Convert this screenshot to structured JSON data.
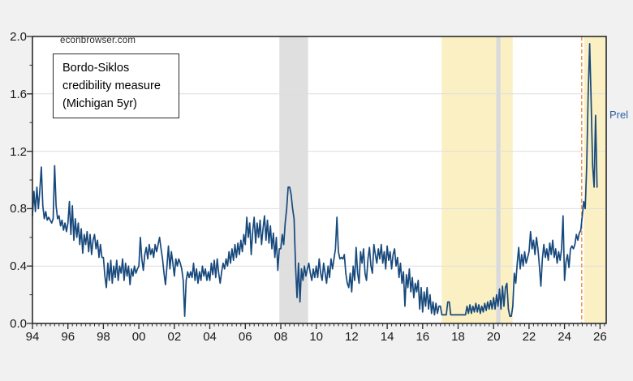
{
  "watermark": "econbrowser.com",
  "annotation_box": {
    "line1": "Bordo-Siklos",
    "line2": "credibility measure",
    "line3": "(Michigan 5yr)"
  },
  "prel_label": "Prel",
  "colors": {
    "canvas_bg": "#F1F1F1",
    "plot_bg": "#FFFFFF",
    "frame": "#2B2B2B",
    "gridline": "#DEDEDE",
    "tick": "#2B2B2B",
    "label": "#1A1A1A",
    "prel_text": "#2C5FA8"
  },
  "chart_data": {
    "type": "line",
    "title": "Bordo-Siklos credibility measure (Michigan 5yr)",
    "xlabel": "",
    "ylabel": "",
    "x_axis": {
      "min": 1994,
      "max": 2026.35,
      "tick_values": [
        1994,
        1996,
        1998,
        2000,
        2002,
        2004,
        2006,
        2008,
        2010,
        2012,
        2014,
        2016,
        2018,
        2020,
        2022,
        2024,
        2026
      ],
      "tick_labels": [
        "94",
        "96",
        "98",
        "00",
        "02",
        "04",
        "06",
        "08",
        "10",
        "12",
        "14",
        "16",
        "18",
        "20",
        "22",
        "24",
        "26"
      ],
      "minor_tick_step": 0.25
    },
    "y_axis": {
      "min": 0,
      "max": 2,
      "tick_values": [
        0,
        0.4,
        0.8,
        1.2,
        1.6,
        2.0
      ],
      "tick_labels": [
        "0.0",
        "0.4",
        "0.8",
        "1.2",
        "1.6",
        "2.0"
      ],
      "minor_tick_step": 0.2
    },
    "gridlines": [
      0.4,
      0.8,
      1.2,
      1.6
    ],
    "bands": [
      {
        "name": "recession-2008",
        "from": 2007.92,
        "to": 2009.54,
        "color": "#DFDFDF"
      },
      {
        "name": "yellow-2017-2021",
        "from": 2017.08,
        "to": 2021.08,
        "color": "#FBF0C3"
      },
      {
        "name": "recession-2020",
        "from": 2020.15,
        "to": 2020.39,
        "color": "#D9D9DE"
      },
      {
        "name": "yellow-2025",
        "from": 2025.1,
        "to": 2026.35,
        "color": "#FBF0C3"
      }
    ],
    "vline": {
      "x": 2024.97,
      "color": "#EF8A3B",
      "style": "dashed"
    },
    "series": [
      {
        "name": "Bordo-Siklos credibility measure (Michigan 5yr)",
        "color": "#17497C",
        "start_year": 1994,
        "frequency": "monthly",
        "values": [
          0.75,
          0.92,
          0.78,
          0.95,
          0.8,
          0.93,
          1.09,
          0.82,
          0.73,
          0.78,
          0.72,
          0.74,
          0.72,
          0.7,
          0.73,
          1.1,
          0.82,
          0.73,
          0.75,
          0.68,
          0.72,
          0.65,
          0.7,
          0.64,
          0.7,
          0.85,
          0.62,
          0.82,
          0.58,
          0.73,
          0.6,
          0.7,
          0.55,
          0.66,
          0.49,
          0.62,
          0.55,
          0.64,
          0.5,
          0.62,
          0.48,
          0.58,
          0.62,
          0.52,
          0.58,
          0.46,
          0.55,
          0.46,
          0.46,
          0.33,
          0.25,
          0.42,
          0.3,
          0.44,
          0.28,
          0.4,
          0.32,
          0.44,
          0.3,
          0.4,
          0.35,
          0.45,
          0.3,
          0.42,
          0.33,
          0.4,
          0.27,
          0.38,
          0.33,
          0.4,
          0.35,
          0.38,
          0.4,
          0.6,
          0.45,
          0.37,
          0.48,
          0.53,
          0.45,
          0.55,
          0.48,
          0.52,
          0.46,
          0.55,
          0.5,
          0.55,
          0.6,
          0.52,
          0.45,
          0.35,
          0.27,
          0.4,
          0.54,
          0.38,
          0.5,
          0.42,
          0.33,
          0.45,
          0.4,
          0.45,
          0.42,
          0.38,
          0.3,
          0.05,
          0.3,
          0.36,
          0.32,
          0.36,
          0.32,
          0.42,
          0.3,
          0.38,
          0.28,
          0.36,
          0.3,
          0.4,
          0.33,
          0.38,
          0.3,
          0.36,
          0.3,
          0.42,
          0.34,
          0.44,
          0.32,
          0.45,
          0.35,
          0.28,
          0.36,
          0.42,
          0.38,
          0.45,
          0.4,
          0.5,
          0.42,
          0.52,
          0.44,
          0.55,
          0.46,
          0.56,
          0.48,
          0.58,
          0.5,
          0.62,
          0.55,
          0.74,
          0.6,
          0.7,
          0.48,
          0.64,
          0.74,
          0.56,
          0.7,
          0.6,
          0.72,
          0.55,
          0.66,
          0.75,
          0.58,
          0.72,
          0.56,
          0.68,
          0.52,
          0.63,
          0.46,
          0.6,
          0.37,
          0.52,
          0.52,
          0.62,
          0.55,
          0.7,
          0.8,
          0.95,
          0.95,
          0.9,
          0.8,
          0.73,
          0.4,
          0.18,
          0.42,
          0.15,
          0.38,
          0.3,
          0.4,
          0.33,
          0.38,
          0.42,
          0.35,
          0.3,
          0.38,
          0.32,
          0.4,
          0.32,
          0.45,
          0.35,
          0.3,
          0.42,
          0.35,
          0.28,
          0.4,
          0.32,
          0.45,
          0.38,
          0.45,
          0.52,
          0.74,
          0.5,
          0.45,
          0.46,
          0.45,
          0.48,
          0.35,
          0.28,
          0.25,
          0.35,
          0.22,
          0.4,
          0.3,
          0.53,
          0.35,
          0.28,
          0.5,
          0.42,
          0.52,
          0.35,
          0.3,
          0.45,
          0.53,
          0.4,
          0.35,
          0.55,
          0.48,
          0.42,
          0.52,
          0.45,
          0.55,
          0.42,
          0.5,
          0.38,
          0.54,
          0.44,
          0.5,
          0.38,
          0.48,
          0.52,
          0.4,
          0.46,
          0.32,
          0.42,
          0.28,
          0.36,
          0.12,
          0.34,
          0.25,
          0.38,
          0.22,
          0.32,
          0.18,
          0.28,
          0.22,
          0.3,
          0.1,
          0.25,
          0.08,
          0.22,
          0.12,
          0.25,
          0.1,
          0.2,
          0.07,
          0.15,
          0.06,
          0.14,
          0.07,
          0.12,
          0.12,
          0.06,
          0.06,
          0.06,
          0.06,
          0.15,
          0.15,
          0.06,
          0.06,
          0.06,
          0.06,
          0.06,
          0.06,
          0.06,
          0.06,
          0.06,
          0.06,
          0.06,
          0.12,
          0.07,
          0.13,
          0.07,
          0.12,
          0.08,
          0.14,
          0.08,
          0.13,
          0.07,
          0.12,
          0.08,
          0.14,
          0.09,
          0.15,
          0.1,
          0.16,
          0.1,
          0.18,
          0.1,
          0.2,
          0.12,
          0.24,
          0.1,
          0.26,
          0.12,
          0.25,
          0.28,
          0.1,
          0.05,
          0.05,
          0.12,
          0.35,
          0.28,
          0.42,
          0.53,
          0.38,
          0.48,
          0.4,
          0.5,
          0.42,
          0.46,
          0.5,
          0.64,
          0.52,
          0.58,
          0.48,
          0.6,
          0.52,
          0.4,
          0.26,
          0.45,
          0.55,
          0.46,
          0.52,
          0.44,
          0.56,
          0.48,
          0.58,
          0.46,
          0.52,
          0.42,
          0.5,
          0.44,
          0.52,
          0.75,
          0.3,
          0.43,
          0.48,
          0.39,
          0.52,
          0.54,
          0.52,
          0.55,
          0.62,
          0.58,
          0.63,
          0.65,
          0.75,
          0.85,
          0.8,
          1.1,
          1.6,
          1.95,
          1.55,
          1.1,
          0.95,
          1.45,
          0.95
        ]
      }
    ]
  }
}
